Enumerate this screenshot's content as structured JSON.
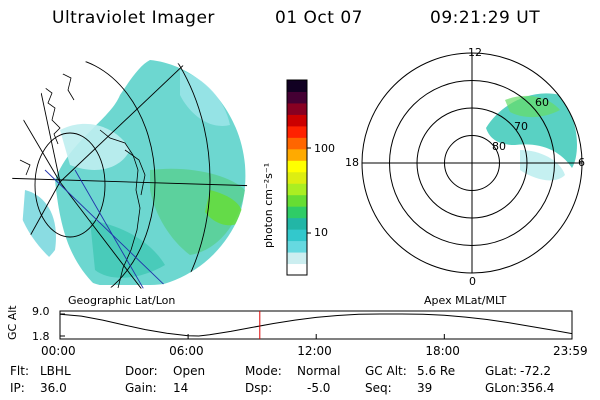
{
  "header": {
    "title": "Ultraviolet Imager",
    "date": "01 Oct 07",
    "time": "09:21:29 UT"
  },
  "colorbar": {
    "unit_label": "photon cm⁻²s⁻¹",
    "ticks": [
      "100",
      "10"
    ],
    "colors": [
      "#ffffff",
      "#cceef0",
      "#66d9e0",
      "#33c8cc",
      "#22b6a6",
      "#2fcc66",
      "#66dd33",
      "#aaee22",
      "#ddee11",
      "#ffff00",
      "#ffaa00",
      "#ff6600",
      "#ff2200",
      "#cc0000",
      "#880022",
      "#440033",
      "#110022"
    ]
  },
  "polar": {
    "lat_labels": [
      "80",
      "70",
      "60"
    ],
    "mlt_labels": {
      "top": "12",
      "left": "18",
      "right": "6",
      "bottom": "0"
    }
  },
  "map_labels": {
    "left": "Geographic Lat/Lon",
    "right": "Apex MLat/MLT"
  },
  "chart_data": {
    "type": "line",
    "title": "",
    "ylabel": "GC Alt",
    "yticks": [
      "9.0",
      "1.8"
    ],
    "ylim": [
      1.8,
      9.0
    ],
    "xticks": [
      "00:00",
      "06:00",
      "12:00",
      "18:00",
      "23:59"
    ],
    "xlim_hours": [
      0,
      23.98
    ],
    "current_time_hours": 9.358,
    "series": [
      {
        "x": [
          0,
          1,
          2,
          3,
          4,
          5,
          6,
          6.5,
          7,
          8,
          9,
          10,
          11,
          12,
          13,
          14,
          15,
          16,
          17,
          18,
          19,
          20,
          21,
          22,
          23,
          23.98
        ],
        "y": [
          8.9,
          8.3,
          7.0,
          5.4,
          3.9,
          2.7,
          1.9,
          1.8,
          2.2,
          3.3,
          4.6,
          5.9,
          7.0,
          7.9,
          8.5,
          8.9,
          9.0,
          9.0,
          8.9,
          8.6,
          8.0,
          7.2,
          6.2,
          5.0,
          3.8,
          2.6
        ]
      }
    ]
  },
  "footer": {
    "row1": [
      {
        "label": "Flt:",
        "value": "LBHL"
      },
      {
        "label": "Door:",
        "value": "Open"
      },
      {
        "label": "Mode:",
        "value": "Normal"
      },
      {
        "label": "GC Alt:",
        "value": "5.6 Re"
      },
      {
        "label": "GLat:",
        "value": "-72.2"
      }
    ],
    "row2": [
      {
        "label": "IP:",
        "value": "36.0"
      },
      {
        "label": "Gain:",
        "value": "14"
      },
      {
        "label": "Dsp:",
        "value": "-5.0"
      },
      {
        "label": "Seq:",
        "value": "39"
      },
      {
        "label": "GLon:",
        "value": "356.4"
      }
    ]
  }
}
